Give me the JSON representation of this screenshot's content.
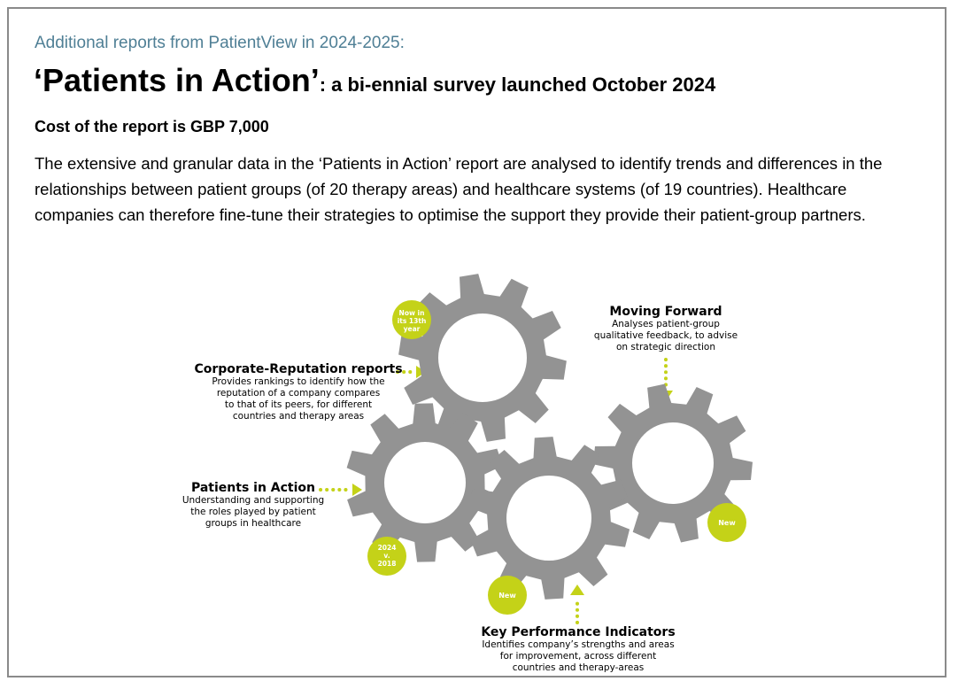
{
  "header": {
    "intro": "Additional reports from PatientView in 2024-2025:",
    "title_main": "‘Patients in Action’",
    "title_sub": ": a bi-ennial survey launched October 2024",
    "cost": "Cost of the report is GBP 7,000",
    "body": "The extensive and granular data in the ‘Patients in Action’ report are analysed to identify trends and differences in the relationships between patient groups (of 20 therapy areas) and healthcare systems (of 19 countries). Healthcare companies can therefore fine-tune their strategies to optimise the support they provide their patient-group partners."
  },
  "diagram": {
    "colors": {
      "gear": "#939393",
      "accent": "#c4d218",
      "icon": "#ffffff"
    },
    "badges": {
      "corporate": "Now in its 13th year",
      "patients": "2024 v. 2018",
      "kpi": "New",
      "moving": "New"
    },
    "labels": {
      "corporate": {
        "title": "Corporate-Reputation reports",
        "desc": "Provides rankings to identify how the reputation of a company compares to that of its peers, for different countries and therapy areas"
      },
      "patients": {
        "title": "Patients in Action",
        "desc": "Understanding and supporting the roles played by patient groups in healthcare"
      },
      "moving": {
        "title": "Moving Forward",
        "desc": "Analyses patient-group qualitative feedback, to advise on strategic direction"
      },
      "kpi": {
        "title": "Key Performance Indicators",
        "desc": "Identifies company’s strengths and areas for improvement, across different countries and therapy-areas"
      }
    },
    "icons": {
      "corporate": "beehive-icon",
      "patients": "people-group-icon",
      "kpi": "gauge-icon",
      "moving": "speech-bubble-people-icon"
    }
  }
}
